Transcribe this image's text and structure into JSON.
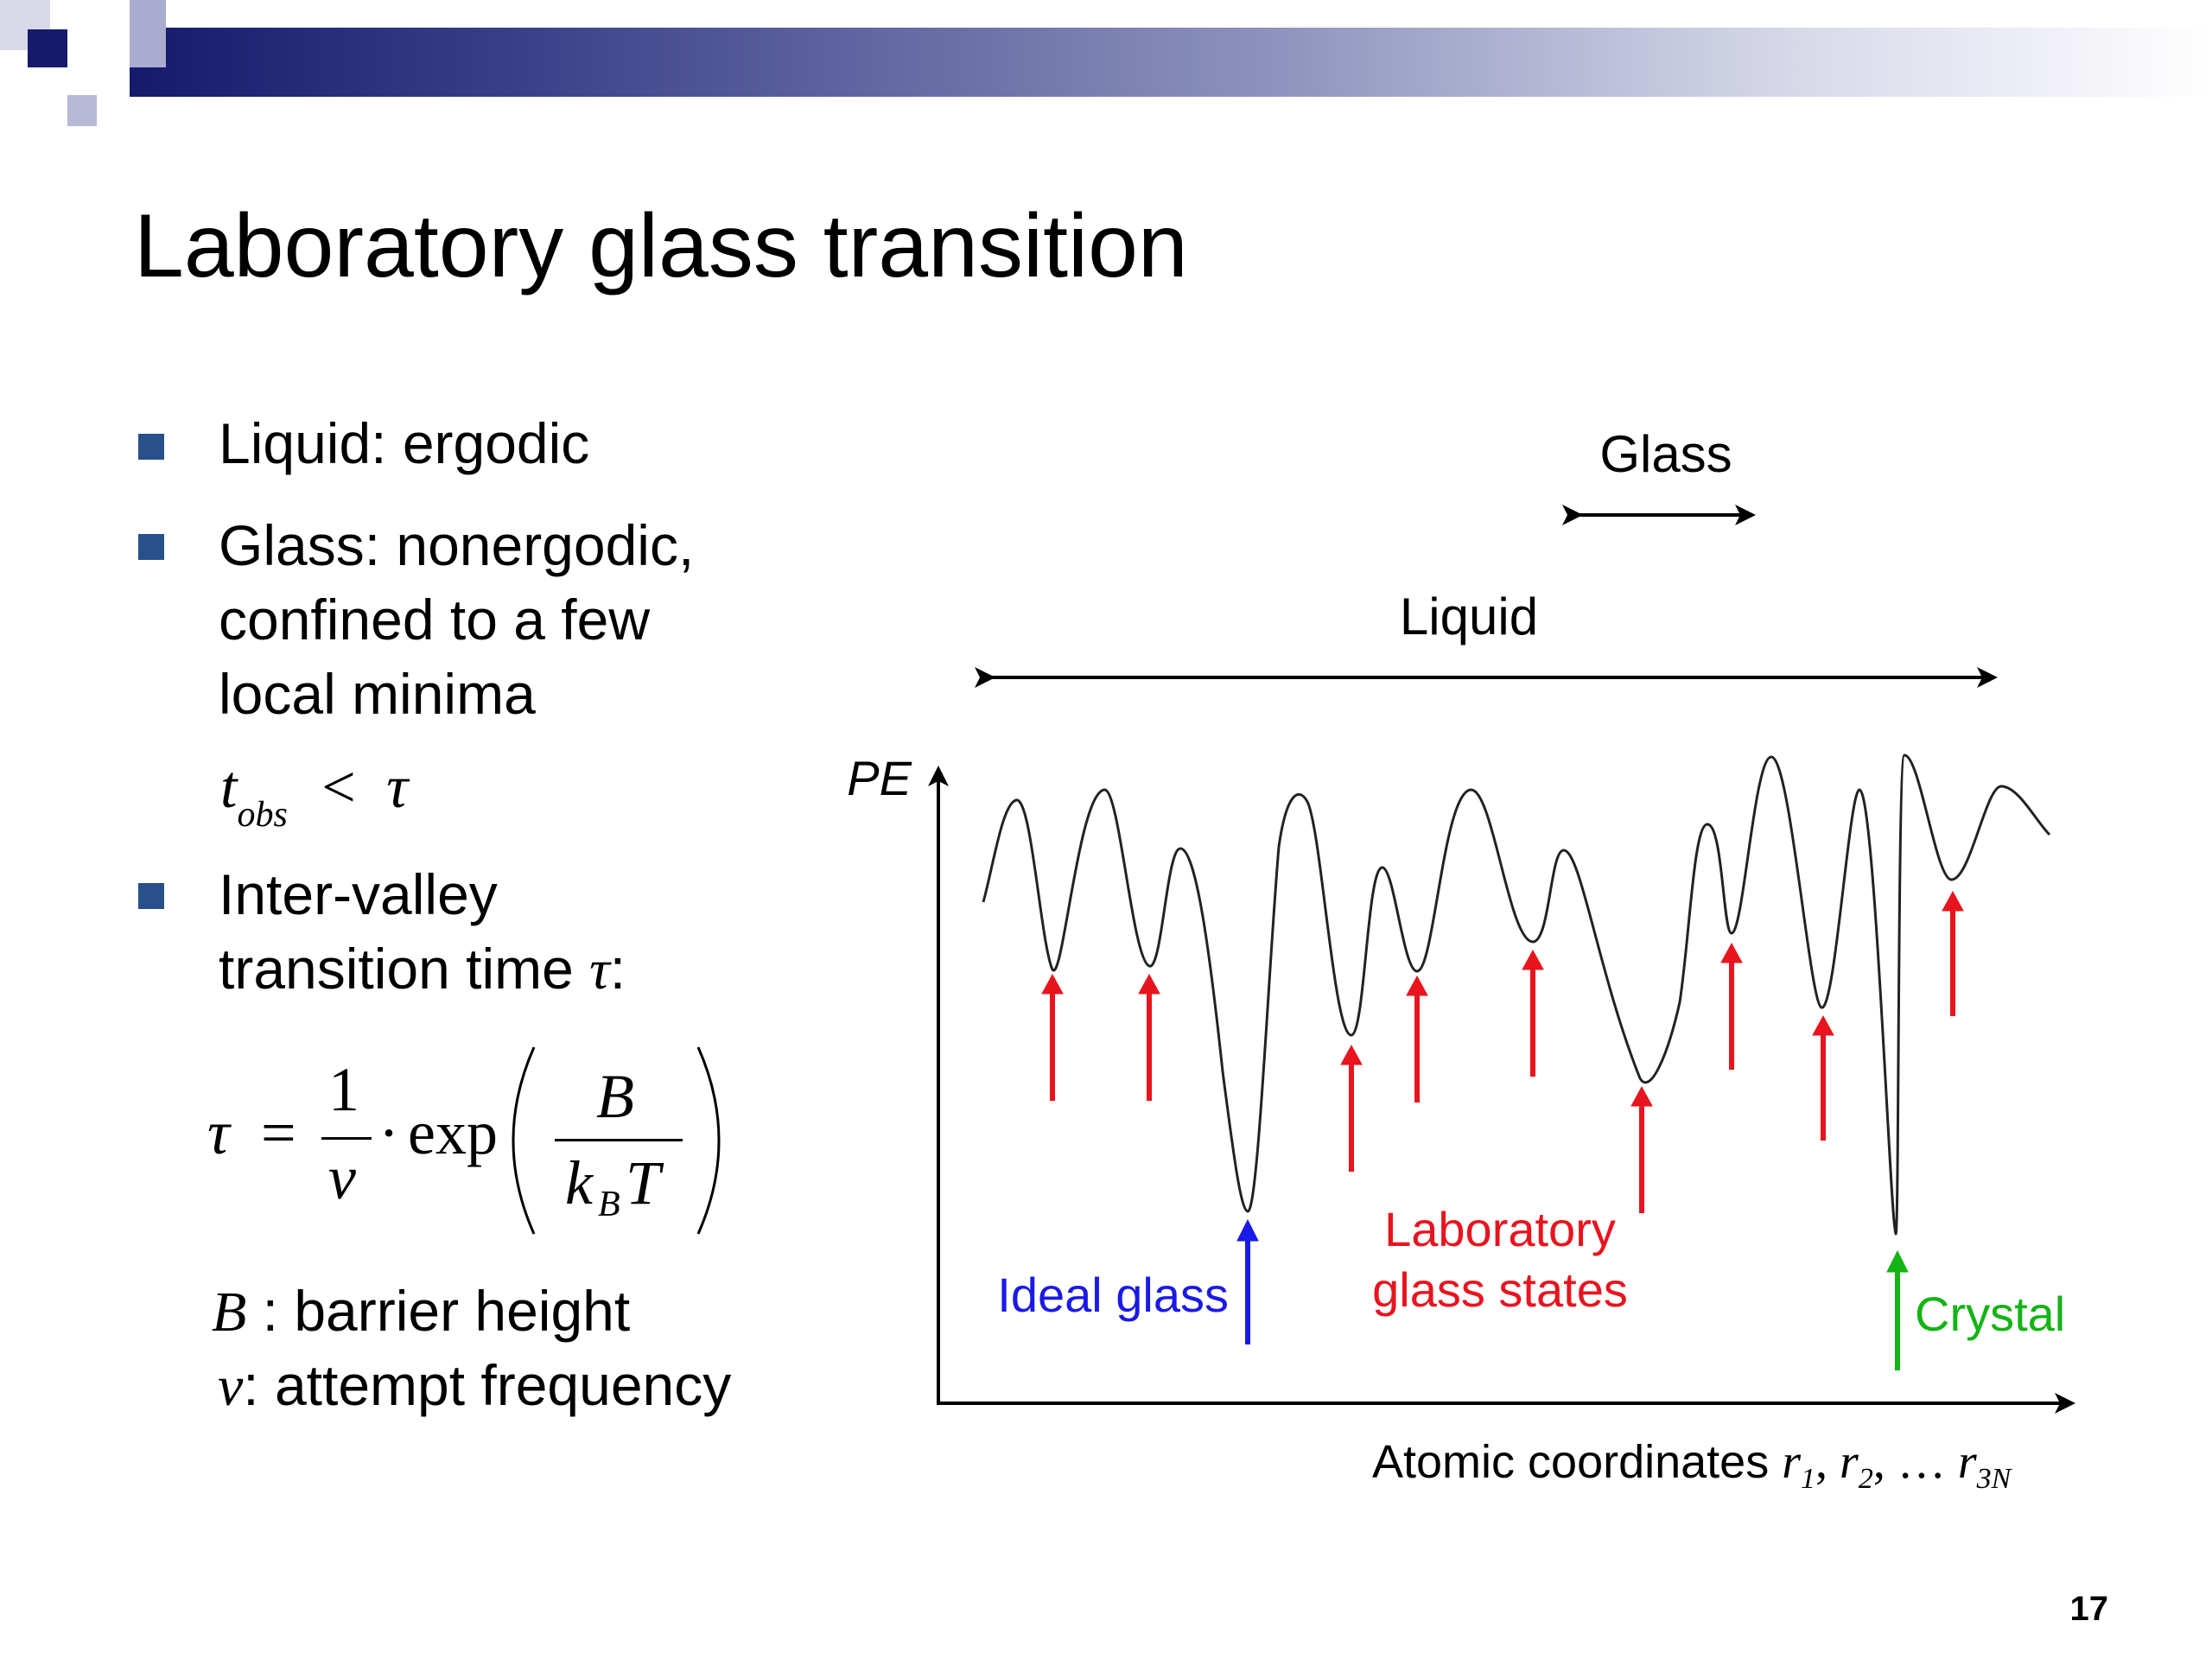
{
  "slide": {
    "title": "Laboratory glass transition",
    "number": "17",
    "accent_color": "#151a6c",
    "bullet_color": "#28508a"
  },
  "bullets": [
    {
      "text": "Liquid: ergodic"
    },
    {
      "lines": [
        "Glass: nonergodic,",
        "confined to a few",
        "local minima"
      ]
    },
    {
      "lines": [
        "Inter-valley",
        "transition time"
      ],
      "symbol": "τ",
      "suffix": ":"
    }
  ],
  "equations": {
    "t_obs": {
      "t": "t",
      "sub": "obs",
      "rel": "<",
      "tau": "τ"
    },
    "tau_formula": {
      "lhs": "τ",
      "eq": "=",
      "num": "1",
      "den": "ν",
      "dot": "·",
      "func": "exp",
      "B": "B",
      "k": "k",
      "ksub": "B",
      "T": "T"
    }
  },
  "definitions": [
    {
      "symbol": "B",
      "text": " : barrier height"
    },
    {
      "symbol": "ν",
      "text": ": attempt frequency"
    }
  ],
  "diagram": {
    "y_axis_label": "PE",
    "x_axis_label": "Atomic coordinates",
    "x_axis_vars": {
      "r1": "r",
      "r1sub": "1",
      "r2": "r",
      "r2sub": "2",
      "dots": "…",
      "r3N": "r",
      "r3Nsub": "3N"
    },
    "range_glass": "Glass",
    "range_liquid": "Liquid",
    "label_ideal_glass": "Ideal glass",
    "label_lab_glass": [
      "Laboratory",
      "glass states"
    ],
    "label_crystal": "Crystal",
    "colors": {
      "red": "#e8141e",
      "blue": "#1a1ae6",
      "green": "#14b414",
      "curve": "#222222"
    }
  }
}
